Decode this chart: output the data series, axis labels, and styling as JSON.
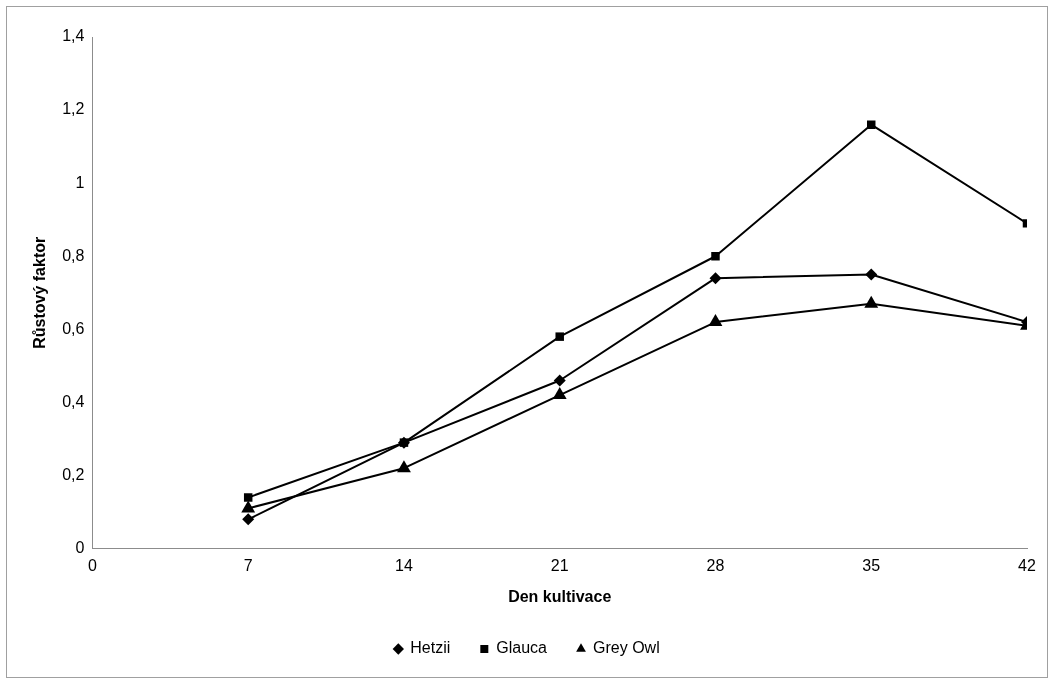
{
  "chart_data": {
    "type": "line",
    "xlabel": "Den kultivace",
    "ylabel": "Růstový faktor",
    "x": [
      7,
      14,
      21,
      28,
      35,
      42
    ],
    "xlim": [
      0,
      42
    ],
    "xticks": [
      0,
      7,
      14,
      21,
      28,
      35,
      42
    ],
    "ylim": [
      0,
      1.4
    ],
    "yticks": [
      0,
      {
        "value": 0.2,
        "label": "0,2"
      },
      {
        "value": 0.4,
        "label": "0,4"
      },
      {
        "value": 0.6,
        "label": "0,6"
      },
      {
        "value": 0.8,
        "label": "0,8"
      },
      1,
      {
        "value": 1.2,
        "label": "1,2"
      },
      {
        "value": 1.4,
        "label": "1,4"
      }
    ],
    "grid": false,
    "legend": "bottom",
    "line_style": "solid",
    "series": [
      {
        "name": "Hetzii",
        "color": "#000000",
        "marker": "diamond",
        "values": [
          0.08,
          0.29,
          0.46,
          0.74,
          0.75,
          0.62
        ]
      },
      {
        "name": "Glauca",
        "color": "#000000",
        "marker": "square",
        "values": [
          0.14,
          0.29,
          0.58,
          0.8,
          1.16,
          0.89
        ]
      },
      {
        "name": "Grey Owl",
        "color": "#000000",
        "marker": "triangle",
        "values": [
          0.11,
          0.22,
          0.42,
          0.62,
          0.67,
          0.61
        ]
      }
    ]
  }
}
